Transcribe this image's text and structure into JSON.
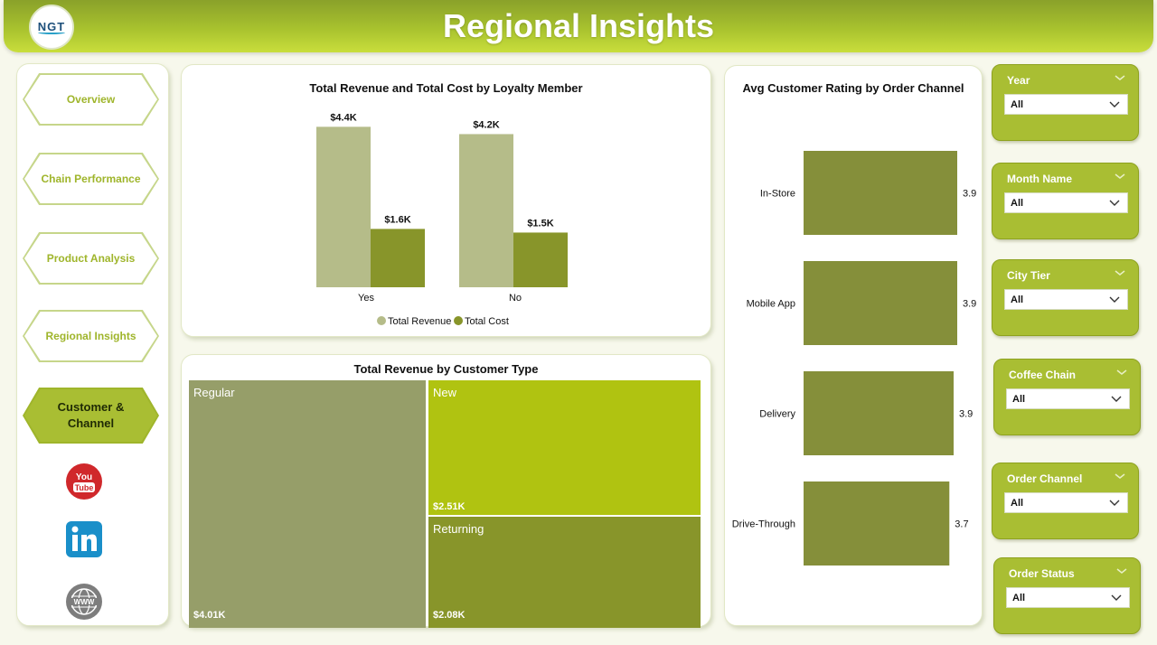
{
  "header": {
    "title": "Regional Insights",
    "logo_text": "NGT"
  },
  "nav": {
    "items": [
      {
        "label": "Overview"
      },
      {
        "label": "Chain Performance"
      },
      {
        "label": "Product Analysis"
      },
      {
        "label": "Regional Insights"
      },
      {
        "label": "Customer & Channel"
      }
    ],
    "social": [
      "youtube-icon",
      "linkedin-icon",
      "website-icon"
    ]
  },
  "colors": {
    "accent": "#a9be33",
    "revenue": "#b5bc89",
    "cost": "#88952a",
    "tm_regular": "#969e69",
    "tm_new": "#b0c311",
    "tm_returning": "#88952a",
    "rating_bar": "#858f3a"
  },
  "chart_data": [
    {
      "type": "bar",
      "title": "Total Revenue and Total Cost by Loyalty Member",
      "categories": [
        "Yes",
        "No"
      ],
      "series": [
        {
          "name": "Total Revenue",
          "values": [
            4.4,
            4.2
          ],
          "labels": [
            "$4.4K",
            "$4.2K"
          ]
        },
        {
          "name": "Total Cost",
          "values": [
            1.6,
            1.5
          ],
          "labels": [
            "$1.6K",
            "$1.5K"
          ]
        }
      ],
      "legend": [
        "Total Revenue",
        "Total Cost"
      ],
      "legend_position": "bottom"
    },
    {
      "type": "treemap",
      "title": "Total Revenue by Customer Type",
      "items": [
        {
          "name": "Regular",
          "value": 4.01,
          "label": "$4.01K"
        },
        {
          "name": "New",
          "value": 2.51,
          "label": "$2.51K"
        },
        {
          "name": "Returning",
          "value": 2.08,
          "label": "$2.08K"
        }
      ]
    },
    {
      "type": "bar",
      "orientation": "horizontal",
      "title": "Avg Customer Rating by Order Channel",
      "categories": [
        "In-Store",
        "Mobile App",
        "Delivery",
        "Drive-Through"
      ],
      "values": [
        3.9,
        3.9,
        3.9,
        3.7
      ],
      "labels": [
        "3.9",
        "3.9",
        "3.9",
        "3.7"
      ]
    }
  ],
  "slicers": [
    {
      "label": "Year",
      "value": "All"
    },
    {
      "label": "Month Name",
      "value": "All"
    },
    {
      "label": "City Tier",
      "value": "All"
    },
    {
      "label": "Coffee Chain",
      "value": "All"
    },
    {
      "label": "Order Channel",
      "value": "All"
    },
    {
      "label": "Order Status",
      "value": "All"
    }
  ]
}
